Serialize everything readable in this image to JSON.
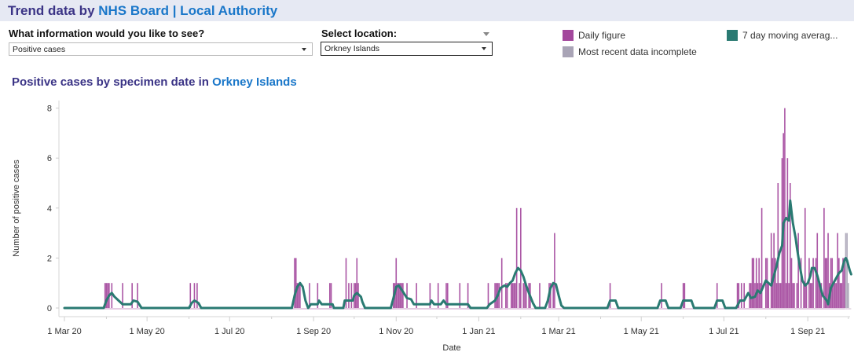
{
  "header": {
    "title_prefix": "Trend data by ",
    "title_highlight": "NHS Board | Local Authority"
  },
  "controls": {
    "info_label": "What information would you like to see?",
    "info_value": "Positive cases",
    "location_label": "Select location:",
    "location_value": "Orkney Islands"
  },
  "legend": {
    "items": [
      {
        "label": "Daily figure",
        "color": "#a3479c"
      },
      {
        "label": "Most recent data incomplete",
        "color": "#a9a4b6"
      },
      {
        "label": "7 day moving averag...",
        "color": "#2a7a72"
      }
    ]
  },
  "chart": {
    "title_prefix": "Positive cases by specimen date in ",
    "title_highlight": "Orkney Islands"
  },
  "chart_data": {
    "type": "bar",
    "title": "Positive cases by specimen date in Orkney Islands",
    "xlabel": "Date",
    "ylabel": "Number of positive cases",
    "ylim": [
      0,
      8
    ],
    "yticks": [
      0,
      2,
      4,
      6,
      8
    ],
    "xticks": [
      "1 Mar 20",
      "1 May 20",
      "1 Jul 20",
      "1 Sep 20",
      "1 Nov 20",
      "1 Jan 21",
      "1 Mar 21",
      "1 May 21",
      "1 Jul 21",
      "1 Sep 21"
    ],
    "x_origin": "1 Mar 20",
    "x_units": "days since 1 Mar 20",
    "grid": false,
    "legend_position": "top-right",
    "series": [
      {
        "name": "Daily figure",
        "type": "bar",
        "color": "#a3479c",
        "points": [
          [
            30,
            1
          ],
          [
            31,
            1
          ],
          [
            32,
            1
          ],
          [
            33,
            1
          ],
          [
            35,
            1
          ],
          [
            43,
            1
          ],
          [
            50,
            1
          ],
          [
            54,
            1
          ],
          [
            93,
            1
          ],
          [
            96,
            1
          ],
          [
            98,
            1
          ],
          [
            170,
            2
          ],
          [
            171,
            2
          ],
          [
            172,
            1
          ],
          [
            173,
            1
          ],
          [
            174,
            1
          ],
          [
            181,
            1
          ],
          [
            187,
            1
          ],
          [
            196,
            1
          ],
          [
            197,
            1
          ],
          [
            208,
            2
          ],
          [
            210,
            1
          ],
          [
            212,
            1
          ],
          [
            214,
            1
          ],
          [
            215,
            1
          ],
          [
            216,
            2
          ],
          [
            217,
            1
          ],
          [
            243,
            1
          ],
          [
            244,
            1
          ],
          [
            245,
            2
          ],
          [
            246,
            1
          ],
          [
            247,
            1
          ],
          [
            248,
            1
          ],
          [
            249,
            1
          ],
          [
            250,
            1
          ],
          [
            253,
            1
          ],
          [
            260,
            1
          ],
          [
            270,
            1
          ],
          [
            276,
            1
          ],
          [
            282,
            1
          ],
          [
            283,
            1
          ],
          [
            292,
            1
          ],
          [
            298,
            1
          ],
          [
            313,
            1
          ],
          [
            318,
            1
          ],
          [
            319,
            1
          ],
          [
            320,
            1
          ],
          [
            321,
            1
          ],
          [
            323,
            2
          ],
          [
            326,
            1
          ],
          [
            327,
            1
          ],
          [
            330,
            1
          ],
          [
            331,
            1
          ],
          [
            332,
            1
          ],
          [
            333,
            1
          ],
          [
            334,
            4
          ],
          [
            336,
            1
          ],
          [
            337,
            4
          ],
          [
            339,
            1
          ],
          [
            340,
            1
          ],
          [
            341,
            1
          ],
          [
            343,
            1
          ],
          [
            344,
            1
          ],
          [
            351,
            1
          ],
          [
            358,
            1
          ],
          [
            359,
            1
          ],
          [
            361,
            1
          ],
          [
            362,
            3
          ],
          [
            403,
            1
          ],
          [
            441,
            1
          ],
          [
            457,
            1
          ],
          [
            458,
            1
          ],
          [
            482,
            1
          ],
          [
            497,
            1
          ],
          [
            498,
            1
          ],
          [
            500,
            1
          ],
          [
            502,
            1
          ],
          [
            506,
            1
          ],
          [
            507,
            1
          ],
          [
            508,
            2
          ],
          [
            509,
            2
          ],
          [
            510,
            1
          ],
          [
            511,
            2
          ],
          [
            512,
            1
          ],
          [
            513,
            2
          ],
          [
            514,
            1
          ],
          [
            515,
            4
          ],
          [
            518,
            2
          ],
          [
            519,
            2
          ],
          [
            520,
            1
          ],
          [
            522,
            3
          ],
          [
            523,
            2
          ],
          [
            524,
            3
          ],
          [
            525,
            2
          ],
          [
            526,
            1
          ],
          [
            527,
            5
          ],
          [
            528,
            1
          ],
          [
            529,
            1
          ],
          [
            530,
            6
          ],
          [
            531,
            7
          ],
          [
            532,
            8
          ],
          [
            533,
            1
          ],
          [
            534,
            6
          ],
          [
            535,
            1
          ],
          [
            536,
            5
          ],
          [
            537,
            2
          ],
          [
            538,
            1
          ],
          [
            539,
            1
          ],
          [
            541,
            1
          ],
          [
            542,
            3
          ],
          [
            544,
            2
          ],
          [
            546,
            1
          ],
          [
            547,
            4
          ],
          [
            548,
            1
          ],
          [
            550,
            2
          ],
          [
            551,
            1
          ],
          [
            552,
            1
          ],
          [
            553,
            2
          ],
          [
            555,
            2
          ],
          [
            556,
            3
          ],
          [
            557,
            1
          ],
          [
            558,
            1
          ],
          [
            559,
            1
          ],
          [
            561,
            4
          ],
          [
            562,
            2
          ],
          [
            563,
            2
          ],
          [
            564,
            3
          ],
          [
            565,
            1
          ],
          [
            566,
            2
          ],
          [
            567,
            2
          ],
          [
            568,
            1
          ],
          [
            569,
            1
          ],
          [
            570,
            1
          ],
          [
            571,
            3
          ],
          [
            572,
            2
          ],
          [
            573,
            1
          ],
          [
            574,
            1
          ],
          [
            575,
            2
          ],
          [
            576,
            2
          ]
        ]
      },
      {
        "name": "Most recent data incomplete",
        "type": "bar",
        "color": "#a9a4b6",
        "points": [
          [
            577,
            3
          ],
          [
            578,
            3
          ],
          [
            579,
            1
          ]
        ]
      },
      {
        "name": "7 day moving average",
        "type": "line",
        "color": "#2a7a72",
        "points": [
          [
            0,
            0
          ],
          [
            29,
            0
          ],
          [
            31,
            0.3
          ],
          [
            33,
            0.5
          ],
          [
            35,
            0.6
          ],
          [
            37,
            0.45
          ],
          [
            40,
            0.3
          ],
          [
            43,
            0.15
          ],
          [
            49,
            0.15
          ],
          [
            51,
            0.3
          ],
          [
            54,
            0.25
          ],
          [
            57,
            0
          ],
          [
            92,
            0
          ],
          [
            94,
            0.2
          ],
          [
            96,
            0.3
          ],
          [
            99,
            0.2
          ],
          [
            101,
            0
          ],
          [
            168,
            0
          ],
          [
            170,
            0.5
          ],
          [
            172,
            0.85
          ],
          [
            174,
            1
          ],
          [
            176,
            0.85
          ],
          [
            178,
            0.3
          ],
          [
            180,
            0
          ],
          [
            182,
            0.15
          ],
          [
            187,
            0.15
          ],
          [
            188,
            0.3
          ],
          [
            190,
            0.15
          ],
          [
            198,
            0.15
          ],
          [
            199,
            0
          ],
          [
            206,
            0
          ],
          [
            207,
            0.3
          ],
          [
            213,
            0.3
          ],
          [
            214,
            0.5
          ],
          [
            216,
            0.6
          ],
          [
            219,
            0.45
          ],
          [
            220,
            0.25
          ],
          [
            222,
            0
          ],
          [
            241,
            0
          ],
          [
            243,
            0.4
          ],
          [
            245,
            0.85
          ],
          [
            247,
            0.9
          ],
          [
            250,
            0.65
          ],
          [
            253,
            0.4
          ],
          [
            256,
            0.35
          ],
          [
            258,
            0.15
          ],
          [
            260,
            0.15
          ],
          [
            270,
            0.15
          ],
          [
            271,
            0.3
          ],
          [
            273,
            0.15
          ],
          [
            278,
            0.15
          ],
          [
            280,
            0.3
          ],
          [
            282,
            0.15
          ],
          [
            298,
            0.15
          ],
          [
            300,
            0
          ],
          [
            312,
            0
          ],
          [
            314,
            0.15
          ],
          [
            318,
            0.3
          ],
          [
            320,
            0.5
          ],
          [
            322,
            0.8
          ],
          [
            325,
            0.9
          ],
          [
            327,
            0.85
          ],
          [
            329,
            1.0
          ],
          [
            331,
            1.1
          ],
          [
            333,
            1.4
          ],
          [
            335,
            1.6
          ],
          [
            337,
            1.5
          ],
          [
            339,
            1.25
          ],
          [
            341,
            0.9
          ],
          [
            343,
            0.6
          ],
          [
            346,
            0.2
          ],
          [
            348,
            0
          ],
          [
            355,
            0
          ],
          [
            357,
            0.3
          ],
          [
            359,
            0.8
          ],
          [
            361,
            1.0
          ],
          [
            363,
            0.95
          ],
          [
            365,
            0.5
          ],
          [
            367,
            0.1
          ],
          [
            369,
            0
          ],
          [
            401,
            0
          ],
          [
            403,
            0.3
          ],
          [
            407,
            0.3
          ],
          [
            409,
            0
          ],
          [
            438,
            0
          ],
          [
            440,
            0.3
          ],
          [
            444,
            0.3
          ],
          [
            446,
            0
          ],
          [
            455,
            0
          ],
          [
            457,
            0.3
          ],
          [
            463,
            0.3
          ],
          [
            465,
            0
          ],
          [
            480,
            0
          ],
          [
            482,
            0.3
          ],
          [
            486,
            0.3
          ],
          [
            488,
            0
          ],
          [
            496,
            0
          ],
          [
            499,
            0.3
          ],
          [
            502,
            0.3
          ],
          [
            505,
            0.6
          ],
          [
            507,
            0.4
          ],
          [
            510,
            0.45
          ],
          [
            512,
            0.7
          ],
          [
            514,
            0.6
          ],
          [
            516,
            0.85
          ],
          [
            518,
            1.1
          ],
          [
            520,
            1.0
          ],
          [
            522,
            0.9
          ],
          [
            524,
            1.3
          ],
          [
            526,
            1.7
          ],
          [
            528,
            2.2
          ],
          [
            530,
            2.5
          ],
          [
            531,
            3.4
          ],
          [
            533,
            3.6
          ],
          [
            535,
            3.5
          ],
          [
            536,
            4.3
          ],
          [
            538,
            3.4
          ],
          [
            540,
            2.8
          ],
          [
            541,
            2.4
          ],
          [
            543,
            1.7
          ],
          [
            544,
            1.4
          ],
          [
            545,
            1.1
          ],
          [
            547,
            0.9
          ],
          [
            549,
            1.0
          ],
          [
            551,
            1.3
          ],
          [
            552,
            1.6
          ],
          [
            554,
            1.6
          ],
          [
            556,
            1.3
          ],
          [
            558,
            0.9
          ],
          [
            560,
            0.5
          ],
          [
            563,
            0.3
          ],
          [
            564,
            0.15
          ],
          [
            566,
            0.8
          ],
          [
            568,
            1.0
          ],
          [
            570,
            1.2
          ],
          [
            572,
            1.4
          ],
          [
            574,
            1.5
          ],
          [
            576,
            1.9
          ],
          [
            577,
            2.0
          ],
          [
            578,
            1.9
          ],
          [
            580,
            1.5
          ],
          [
            581,
            1.35
          ]
        ]
      }
    ]
  }
}
